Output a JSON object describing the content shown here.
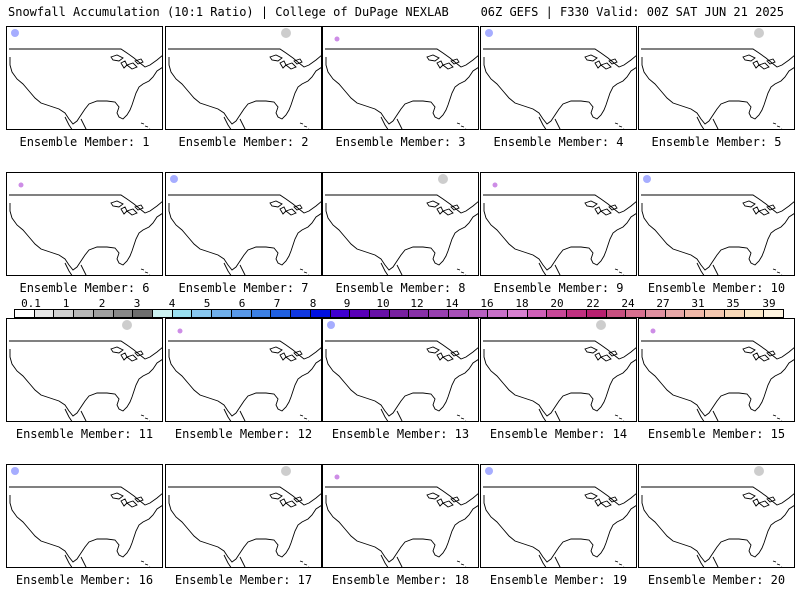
{
  "header": {
    "left": "Snowfall Accumulation (10:1 Ratio) | College of DuPage NEXLAB",
    "right": "06Z GEFS | F330 Valid: 00Z SAT JUN 21 2025"
  },
  "panels": [
    {
      "label": "Ensemble Member: 1"
    },
    {
      "label": "Ensemble Member: 2"
    },
    {
      "label": "Ensemble Member: 3"
    },
    {
      "label": "Ensemble Member: 4"
    },
    {
      "label": "Ensemble Member: 5"
    },
    {
      "label": "Ensemble Member: 6"
    },
    {
      "label": "Ensemble Member: 7"
    },
    {
      "label": "Ensemble Member: 8"
    },
    {
      "label": "Ensemble Member: 9"
    },
    {
      "label": "Ensemble Member: 10"
    },
    {
      "label": "Ensemble Member: 11"
    },
    {
      "label": "Ensemble Member: 12"
    },
    {
      "label": "Ensemble Member: 13"
    },
    {
      "label": "Ensemble Member: 14"
    },
    {
      "label": "Ensemble Member: 15"
    },
    {
      "label": "Ensemble Member: 16"
    },
    {
      "label": "Ensemble Member: 17"
    },
    {
      "label": "Ensemble Member: 18"
    },
    {
      "label": "Ensemble Member: 19"
    },
    {
      "label": "Ensemble Member: 20"
    }
  ],
  "colorbar": {
    "ticks": [
      "0.1",
      "1",
      "2",
      "3",
      "4",
      "5",
      "6",
      "7",
      "8",
      "9",
      "10",
      "12",
      "14",
      "16",
      "18",
      "20",
      "22",
      "24",
      "27",
      "31",
      "35",
      "39"
    ],
    "colors": [
      "#ffffff",
      "#e6e6e6",
      "#d0d0d0",
      "#b8b8b8",
      "#a0a0a0",
      "#888888",
      "#6e6e6e",
      "#ccf2f2",
      "#99e0f0",
      "#88c8f0",
      "#70b0ec",
      "#5898e8",
      "#3c80e4",
      "#2060e0",
      "#1038e0",
      "#0010e0",
      "#4000d0",
      "#5a00b8",
      "#6810a8",
      "#7820a0",
      "#8830a8",
      "#9840b0",
      "#a850b8",
      "#b860c0",
      "#c870c8",
      "#d880d0",
      "#d060b8",
      "#c84898",
      "#c03080",
      "#b82070",
      "#c85080",
      "#d87090",
      "#e090a0",
      "#e8a8a8",
      "#f0b8a8",
      "#f4c8b0",
      "#f8d8b8",
      "#fce8c8",
      "#fff4e0"
    ]
  }
}
